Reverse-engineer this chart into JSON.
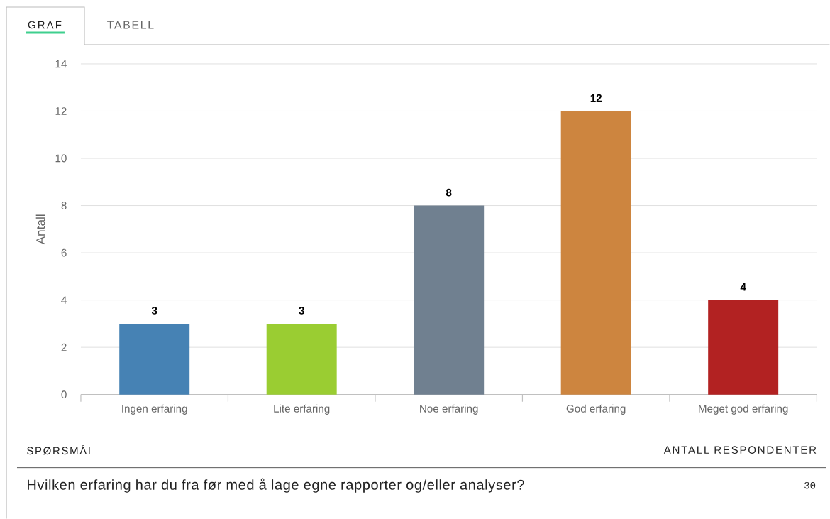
{
  "chart_data": {
    "type": "bar",
    "categories": [
      "Ingen erfaring",
      "Lite erfaring",
      "Noe erfaring",
      "God erfaring",
      "Meget god erfaring"
    ],
    "values": [
      3,
      3,
      8,
      12,
      4
    ],
    "colors": [
      "#4682b4",
      "#9acd32",
      "#708090",
      "#cd853f",
      "#b22222"
    ],
    "ylabel": "Antall",
    "ylim": [
      0,
      14
    ],
    "yticks": [
      0,
      2,
      4,
      6,
      8,
      10,
      12,
      14
    ],
    "grid": "y",
    "data_labels": true,
    "annotations": [
      "GRAF",
      "TABELL",
      "SPØRSMÅL",
      "ANTALL RESPONDENTER",
      "Hvilken erfaring har du fra før med å lage egne rapporter og/eller analyser?",
      "30"
    ]
  }
}
